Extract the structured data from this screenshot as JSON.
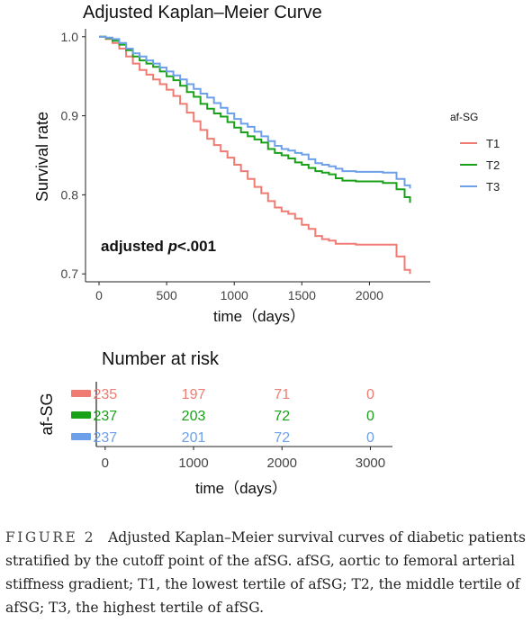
{
  "chart_data": [
    {
      "type": "line",
      "title": "Adjusted Kaplan–Meier Curve",
      "xlabel": "time（days）",
      "ylabel": "Survival rate",
      "xticks": [
        0,
        500,
        1000,
        1500,
        2000
      ],
      "yticks": [
        0.7,
        0.8,
        0.9,
        1.0
      ],
      "ytick_labels": [
        "0.7",
        "0.8",
        "0.9",
        "1.0"
      ],
      "xlim": [
        -100,
        2450
      ],
      "ylim": [
        0.69,
        1.01
      ],
      "legend": {
        "title": "af-SG",
        "position": "right"
      },
      "annotation": {
        "prefix": "adjusted ",
        "italic": "p",
        "suffix": "<.001"
      },
      "series": [
        {
          "name": "T1",
          "color": "#f07b72",
          "points": [
            [
              0,
              1.0
            ],
            [
              50,
              0.997
            ],
            [
              100,
              0.992
            ],
            [
              150,
              0.985
            ],
            [
              200,
              0.975
            ],
            [
              250,
              0.966
            ],
            [
              300,
              0.958
            ],
            [
              350,
              0.952
            ],
            [
              400,
              0.946
            ],
            [
              450,
              0.94
            ],
            [
              500,
              0.933
            ],
            [
              550,
              0.925
            ],
            [
              600,
              0.915
            ],
            [
              650,
              0.904
            ],
            [
              700,
              0.893
            ],
            [
              750,
              0.882
            ],
            [
              800,
              0.871
            ],
            [
              850,
              0.863
            ],
            [
              900,
              0.855
            ],
            [
              950,
              0.847
            ],
            [
              1000,
              0.838
            ],
            [
              1050,
              0.83
            ],
            [
              1100,
              0.82
            ],
            [
              1150,
              0.81
            ],
            [
              1200,
              0.802
            ],
            [
              1250,
              0.792
            ],
            [
              1300,
              0.784
            ],
            [
              1350,
              0.779
            ],
            [
              1400,
              0.776
            ],
            [
              1450,
              0.77
            ],
            [
              1500,
              0.762
            ],
            [
              1550,
              0.757
            ],
            [
              1600,
              0.748
            ],
            [
              1650,
              0.744
            ],
            [
              1700,
              0.742
            ],
            [
              1750,
              0.738
            ],
            [
              1800,
              0.738
            ],
            [
              1900,
              0.737
            ],
            [
              2000,
              0.737
            ],
            [
              2100,
              0.737
            ],
            [
              2200,
              0.722
            ],
            [
              2260,
              0.705
            ],
            [
              2300,
              0.7
            ]
          ]
        },
        {
          "name": "T2",
          "color": "#1aa11a",
          "points": [
            [
              0,
              1.0
            ],
            [
              50,
              0.998
            ],
            [
              100,
              0.995
            ],
            [
              150,
              0.99
            ],
            [
              200,
              0.983
            ],
            [
              250,
              0.975
            ],
            [
              300,
              0.97
            ],
            [
              350,
              0.966
            ],
            [
              400,
              0.962
            ],
            [
              450,
              0.956
            ],
            [
              500,
              0.95
            ],
            [
              550,
              0.945
            ],
            [
              600,
              0.938
            ],
            [
              650,
              0.93
            ],
            [
              700,
              0.924
            ],
            [
              750,
              0.915
            ],
            [
              800,
              0.909
            ],
            [
              850,
              0.903
            ],
            [
              900,
              0.899
            ],
            [
              950,
              0.892
            ],
            [
              1000,
              0.885
            ],
            [
              1050,
              0.879
            ],
            [
              1100,
              0.874
            ],
            [
              1150,
              0.87
            ],
            [
              1200,
              0.866
            ],
            [
              1250,
              0.858
            ],
            [
              1300,
              0.853
            ],
            [
              1350,
              0.85
            ],
            [
              1400,
              0.846
            ],
            [
              1450,
              0.841
            ],
            [
              1500,
              0.838
            ],
            [
              1550,
              0.834
            ],
            [
              1600,
              0.83
            ],
            [
              1650,
              0.828
            ],
            [
              1700,
              0.826
            ],
            [
              1750,
              0.821
            ],
            [
              1800,
              0.818
            ],
            [
              1900,
              0.817
            ],
            [
              2000,
              0.817
            ],
            [
              2100,
              0.815
            ],
            [
              2200,
              0.807
            ],
            [
              2260,
              0.797
            ],
            [
              2300,
              0.79
            ]
          ]
        },
        {
          "name": "T3",
          "color": "#6ea0ea",
          "points": [
            [
              0,
              1.0
            ],
            [
              50,
              0.999
            ],
            [
              100,
              0.997
            ],
            [
              150,
              0.992
            ],
            [
              200,
              0.985
            ],
            [
              250,
              0.979
            ],
            [
              300,
              0.975
            ],
            [
              350,
              0.97
            ],
            [
              400,
              0.966
            ],
            [
              450,
              0.961
            ],
            [
              500,
              0.956
            ],
            [
              550,
              0.951
            ],
            [
              600,
              0.946
            ],
            [
              650,
              0.94
            ],
            [
              700,
              0.934
            ],
            [
              750,
              0.928
            ],
            [
              800,
              0.923
            ],
            [
              850,
              0.916
            ],
            [
              900,
              0.91
            ],
            [
              950,
              0.903
            ],
            [
              1000,
              0.896
            ],
            [
              1050,
              0.89
            ],
            [
              1100,
              0.886
            ],
            [
              1150,
              0.88
            ],
            [
              1200,
              0.874
            ],
            [
              1250,
              0.868
            ],
            [
              1300,
              0.862
            ],
            [
              1350,
              0.858
            ],
            [
              1400,
              0.856
            ],
            [
              1450,
              0.853
            ],
            [
              1500,
              0.851
            ],
            [
              1550,
              0.845
            ],
            [
              1600,
              0.84
            ],
            [
              1650,
              0.838
            ],
            [
              1700,
              0.836
            ],
            [
              1750,
              0.833
            ],
            [
              1800,
              0.83
            ],
            [
              1900,
              0.829
            ],
            [
              2000,
              0.829
            ],
            [
              2100,
              0.828
            ],
            [
              2200,
              0.82
            ],
            [
              2260,
              0.812
            ],
            [
              2300,
              0.808
            ]
          ]
        }
      ]
    },
    {
      "type": "table",
      "title": "Number at risk",
      "xlabel": "time（days）",
      "ylabel": "af-SG",
      "xticks": [
        0,
        1000,
        2000,
        3000
      ],
      "xlim": [
        -100,
        3250
      ],
      "rows": [
        {
          "color": "#f07b72",
          "values": [
            "235",
            "197",
            "71",
            "0"
          ]
        },
        {
          "color": "#1aa11a",
          "values": [
            "237",
            "203",
            "72",
            "0"
          ]
        },
        {
          "color": "#6ea0ea",
          "values": [
            "237",
            "201",
            "72",
            "0"
          ]
        }
      ]
    }
  ],
  "caption": {
    "label": "FIGURE 2",
    "text": "Adjusted Kaplan–Meier survival curves of diabetic patients stratified by the cutoff point of the afSG. afSG, aortic to femoral arterial stiffness gradient; T1, the lowest tertile of afSG; T2, the middle tertile of afSG; T3, the highest tertile of afSG."
  }
}
